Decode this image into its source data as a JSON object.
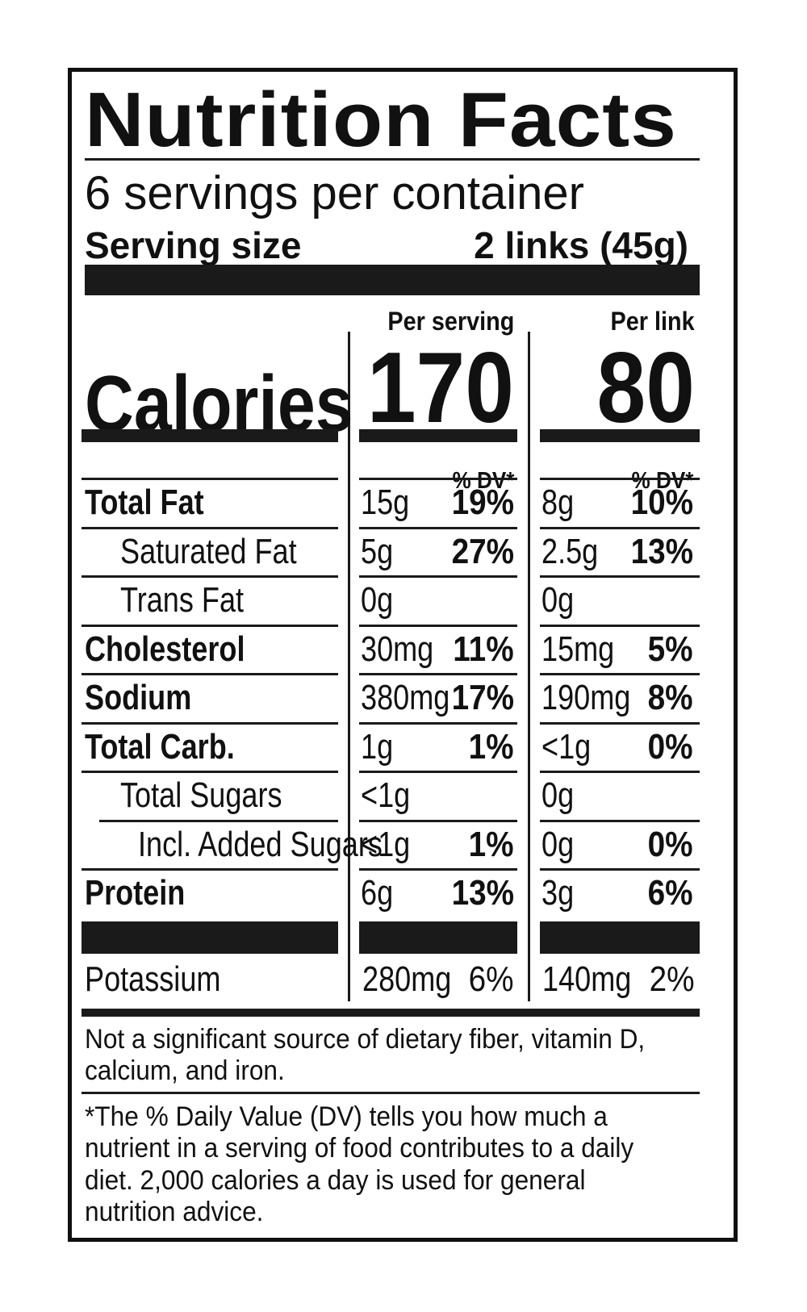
{
  "title": "Nutrition Facts",
  "servings_per_container": "6 servings per container",
  "serving_size_label": "Serving size",
  "serving_size_value": "2 links (45g)",
  "columns": {
    "per_serving_label": "Per serving",
    "per_link_label": "Per link",
    "dv_label": "% DV*"
  },
  "calories": {
    "label": "Calories",
    "per_serving": "170",
    "per_link": "80"
  },
  "nutrients": [
    {
      "name": "Total Fat",
      "bold": true,
      "indent": 0,
      "serving_amount": "15g",
      "serving_dv": "19%",
      "link_amount": "8g",
      "link_dv": "10%"
    },
    {
      "name": "Saturated Fat",
      "bold": false,
      "indent": 1,
      "serving_amount": "5g",
      "serving_dv": "27%",
      "link_amount": "2.5g",
      "link_dv": "13%"
    },
    {
      "name": "Trans Fat",
      "bold": false,
      "indent": 1,
      "serving_amount": "0g",
      "serving_dv": "",
      "link_amount": "0g",
      "link_dv": ""
    },
    {
      "name": "Cholesterol",
      "bold": true,
      "indent": 0,
      "serving_amount": "30mg",
      "serving_dv": "11%",
      "link_amount": "15mg",
      "link_dv": "5%"
    },
    {
      "name": "Sodium",
      "bold": true,
      "indent": 0,
      "serving_amount": "380mg",
      "serving_dv": "17%",
      "link_amount": "190mg",
      "link_dv": "8%"
    },
    {
      "name": "Total Carb.",
      "bold": true,
      "indent": 0,
      "serving_amount": "1g",
      "serving_dv": "1%",
      "link_amount": "<1g",
      "link_dv": "0%"
    },
    {
      "name": "Total Sugars",
      "bold": false,
      "indent": 1,
      "serving_amount": "<1g",
      "serving_dv": "",
      "link_amount": "0g",
      "link_dv": ""
    },
    {
      "name": "Incl. Added Sugars",
      "bold": false,
      "indent": 2,
      "serving_amount": "<1g",
      "serving_dv": "1%",
      "link_amount": "0g",
      "link_dv": "0%"
    },
    {
      "name": "Protein",
      "bold": true,
      "indent": 0,
      "serving_amount": "6g",
      "serving_dv": "13%",
      "link_amount": "3g",
      "link_dv": "6%"
    }
  ],
  "potassium": {
    "name": "Potassium",
    "serving_amount": "280mg",
    "serving_dv": "6%",
    "link_amount": "140mg",
    "link_dv": "2%"
  },
  "footnote_1": "Not a significant source of dietary fiber, vitamin D, calcium, and iron.",
  "footnote_2": "*The % Daily Value (DV) tells you how much a nutrient in a serving of food contributes to a daily diet. 2,000 calories a day is used for general nutrition advice."
}
